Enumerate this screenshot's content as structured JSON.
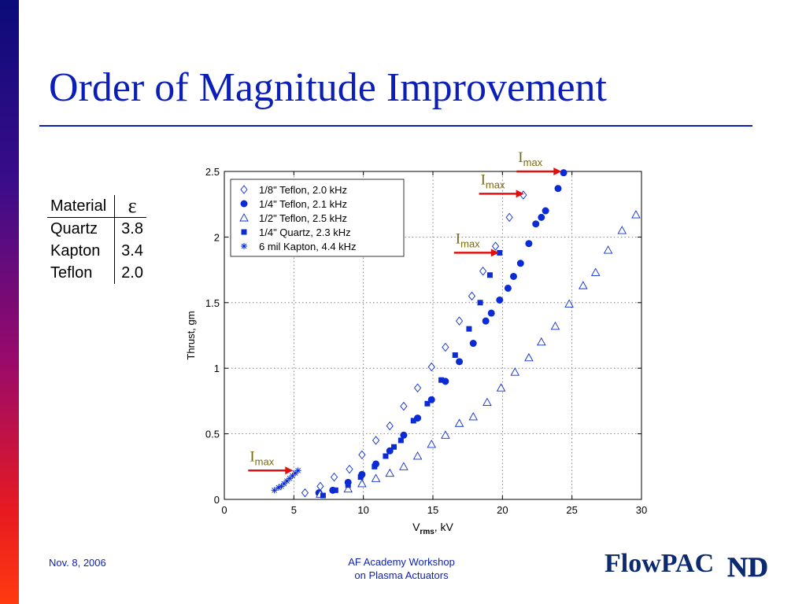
{
  "slide": {
    "title": "Order of Magnitude Improvement",
    "footer_date": "Nov. 8, 2006",
    "footer_center_line1": "AF Academy Workshop",
    "footer_center_line2": "on Plasma Actuators",
    "logo_text": "FlowPAC",
    "logo_monogram": "ND"
  },
  "material_table": {
    "header_material": "Material",
    "header_epsilon": "ε",
    "rows": [
      {
        "material": "Quartz",
        "epsilon": "3.8"
      },
      {
        "material": "Kapton",
        "epsilon": "3.4"
      },
      {
        "material": "Teflon",
        "epsilon": "2.0"
      }
    ]
  },
  "chart_data": {
    "type": "scatter",
    "xlabel_main": "V",
    "xlabel_sub": "rms",
    "xlabel_tail": ", kV",
    "ylabel": "Thrust, gm",
    "xlim": [
      0,
      30
    ],
    "ylim": [
      0,
      2.5
    ],
    "xticks": [
      "0",
      "5",
      "10",
      "15",
      "20",
      "25",
      "30"
    ],
    "yticks": [
      "0",
      "0.5",
      "1",
      "1.5",
      "2",
      "2.5"
    ],
    "grid": true,
    "legend_position": "top-left",
    "marker_color": "#0a2bd6",
    "arrow_color": "#e01010",
    "annotation_color": "#7a6a10",
    "annotations": [
      {
        "text": "I",
        "sub": "max",
        "x": 5.0,
        "y": 0.22
      },
      {
        "text": "I",
        "sub": "max",
        "x": 19.8,
        "y": 1.88
      },
      {
        "text": "I",
        "sub": "max",
        "x": 21.6,
        "y": 2.33
      },
      {
        "text": "I",
        "sub": "max",
        "x": 24.3,
        "y": 2.5
      }
    ],
    "series": [
      {
        "name": "1/8\" Teflon, 2.0 kHz",
        "marker": "diamond",
        "points": [
          [
            5.8,
            0.05
          ],
          [
            6.9,
            0.1
          ],
          [
            7.9,
            0.17
          ],
          [
            9.0,
            0.23
          ],
          [
            9.9,
            0.34
          ],
          [
            10.9,
            0.45
          ],
          [
            11.9,
            0.56
          ],
          [
            12.9,
            0.71
          ],
          [
            13.9,
            0.85
          ],
          [
            14.9,
            1.01
          ],
          [
            15.9,
            1.16
          ],
          [
            16.9,
            1.36
          ],
          [
            17.8,
            1.55
          ],
          [
            18.6,
            1.74
          ],
          [
            19.5,
            1.93
          ],
          [
            20.5,
            2.15
          ],
          [
            21.5,
            2.32
          ]
        ]
      },
      {
        "name": "1/4\" Teflon, 2.1 kHz",
        "marker": "circle",
        "points": [
          [
            6.8,
            0.05
          ],
          [
            7.8,
            0.07
          ],
          [
            8.9,
            0.13
          ],
          [
            9.9,
            0.19
          ],
          [
            10.9,
            0.27
          ],
          [
            11.9,
            0.37
          ],
          [
            12.9,
            0.49
          ],
          [
            13.9,
            0.62
          ],
          [
            14.9,
            0.76
          ],
          [
            15.9,
            0.9
          ],
          [
            16.9,
            1.05
          ],
          [
            17.9,
            1.19
          ],
          [
            18.8,
            1.36
          ],
          [
            19.2,
            1.42
          ],
          [
            19.8,
            1.52
          ],
          [
            20.4,
            1.61
          ],
          [
            20.8,
            1.7
          ],
          [
            21.3,
            1.8
          ],
          [
            21.9,
            1.95
          ],
          [
            22.4,
            2.1
          ],
          [
            22.8,
            2.15
          ],
          [
            23.1,
            2.2
          ],
          [
            24.0,
            2.37
          ],
          [
            24.4,
            2.49
          ]
        ]
      },
      {
        "name": "1/2\" Teflon, 2.5 kHz",
        "marker": "triangle",
        "points": [
          [
            6.9,
            0.04
          ],
          [
            8.9,
            0.08
          ],
          [
            9.9,
            0.12
          ],
          [
            10.9,
            0.16
          ],
          [
            11.9,
            0.2
          ],
          [
            12.9,
            0.25
          ],
          [
            13.9,
            0.33
          ],
          [
            14.9,
            0.42
          ],
          [
            15.9,
            0.49
          ],
          [
            16.9,
            0.58
          ],
          [
            17.9,
            0.63
          ],
          [
            18.9,
            0.74
          ],
          [
            19.9,
            0.85
          ],
          [
            20.9,
            0.97
          ],
          [
            21.9,
            1.08
          ],
          [
            22.8,
            1.2
          ],
          [
            23.8,
            1.32
          ],
          [
            24.8,
            1.49
          ],
          [
            25.8,
            1.63
          ],
          [
            26.7,
            1.73
          ],
          [
            27.6,
            1.9
          ],
          [
            28.6,
            2.05
          ],
          [
            29.6,
            2.17
          ]
        ]
      },
      {
        "name": "1/4\" Quartz, 2.3 kHz",
        "marker": "square",
        "points": [
          [
            7.1,
            0.03
          ],
          [
            8.0,
            0.07
          ],
          [
            8.9,
            0.11
          ],
          [
            9.8,
            0.17
          ],
          [
            10.8,
            0.25
          ],
          [
            11.6,
            0.33
          ],
          [
            12.2,
            0.4
          ],
          [
            12.7,
            0.45
          ],
          [
            13.6,
            0.6
          ],
          [
            14.6,
            0.73
          ],
          [
            15.6,
            0.91
          ],
          [
            16.6,
            1.1
          ],
          [
            17.6,
            1.3
          ],
          [
            18.4,
            1.5
          ],
          [
            19.1,
            1.71
          ],
          [
            19.8,
            1.88
          ]
        ]
      },
      {
        "name": "6 mil Kapton, 4.4 kHz",
        "marker": "star",
        "points": [
          [
            3.6,
            0.07
          ],
          [
            3.9,
            0.09
          ],
          [
            4.1,
            0.1
          ],
          [
            4.3,
            0.12
          ],
          [
            4.5,
            0.14
          ],
          [
            4.7,
            0.16
          ],
          [
            4.9,
            0.18
          ],
          [
            5.1,
            0.2
          ],
          [
            5.3,
            0.22
          ]
        ]
      }
    ]
  }
}
